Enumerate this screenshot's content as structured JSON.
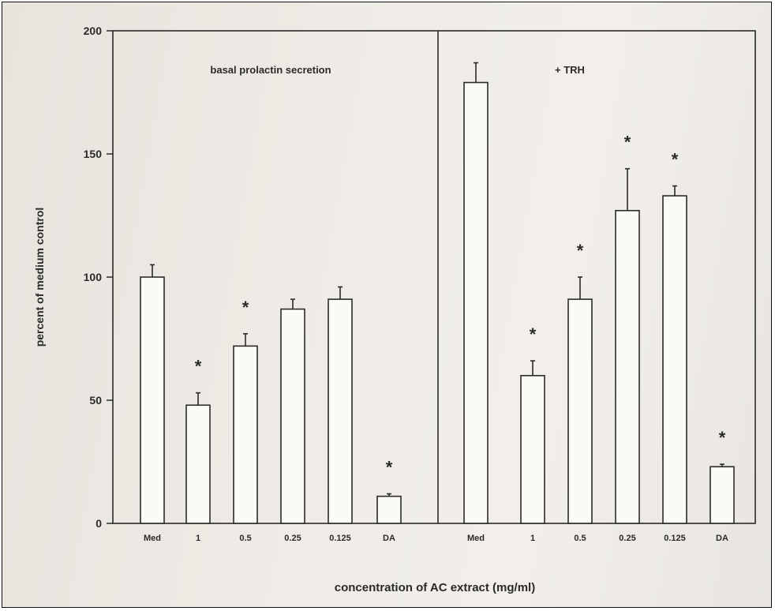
{
  "chart_data": {
    "type": "bar",
    "ylabel": "percent of medium control",
    "xlabel": "concentration of AC extract (mg/ml)",
    "ylim": [
      0,
      200
    ],
    "yticks": [
      0,
      50,
      100,
      150,
      200
    ],
    "grid": false,
    "legend": "none",
    "colors": {
      "bar_fill": "#fbfaf7",
      "ink": "#2a2a2a",
      "paper": "#ece9e4"
    },
    "panels": [
      {
        "title": "basal prolactin secretion",
        "categories": [
          "Med",
          "1",
          "0.5",
          "0.25",
          "0.125",
          "DA"
        ],
        "values": [
          100,
          48,
          72,
          87,
          91,
          11
        ],
        "errors": [
          5,
          5,
          5,
          4,
          5,
          1
        ],
        "significant": [
          false,
          true,
          true,
          false,
          false,
          true
        ]
      },
      {
        "title": "+ TRH",
        "categories": [
          "Med",
          "1",
          "0.5",
          "0.25",
          "0.125",
          "DA"
        ],
        "values": [
          179,
          60,
          91,
          127,
          133,
          23
        ],
        "errors": [
          8,
          6,
          9,
          17,
          4,
          1
        ],
        "significant": [
          false,
          true,
          true,
          true,
          true,
          true
        ]
      }
    ]
  }
}
